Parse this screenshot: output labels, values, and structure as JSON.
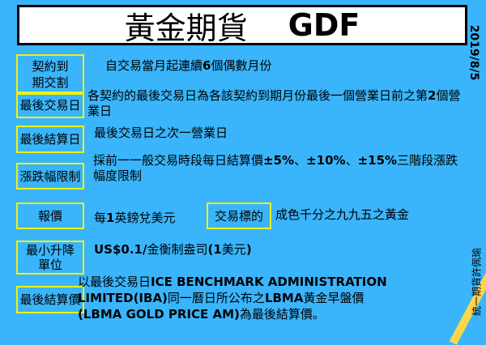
{
  "title": {
    "zh": "黃金期貨",
    "code": "GDF"
  },
  "date": "2019/8/5",
  "author": "統一期貨許佩瑜",
  "colors": {
    "background": "#3ab5fb",
    "label_border": "#f2f20a",
    "stripe": "#ffd54a"
  },
  "rows": [
    {
      "label": "契約到\n期交割",
      "segments": [
        {
          "t": "自交易當月起連續"
        },
        {
          "t": "6",
          "b": true
        },
        {
          "t": "個偶數月份"
        }
      ]
    },
    {
      "label": "最後交易日",
      "segments": [
        {
          "t": "各契約的最後交易日為各該契約到期月份最後一個營業日前之第"
        },
        {
          "t": "2",
          "b": true
        },
        {
          "t": "個營業日"
        }
      ]
    },
    {
      "label": "最後結算日",
      "segments": [
        {
          "t": "最後交易日之次一營業日"
        }
      ]
    },
    {
      "label": "漲跌幅限制",
      "segments": [
        {
          "t": "採前一一般交易時段每日結算價"
        },
        {
          "t": "±5%",
          "b": true
        },
        {
          "t": "、"
        },
        {
          "t": "±10%",
          "b": true
        },
        {
          "t": "、"
        },
        {
          "t": "±15%",
          "b": true
        },
        {
          "t": "三階段漲跌幅度限制"
        }
      ]
    },
    {
      "label": "報價",
      "segments": [
        {
          "t": "每"
        },
        {
          "t": "1",
          "b": true
        },
        {
          "t": "英鎊兌美元"
        }
      ]
    },
    {
      "label": "最小升降\n單位",
      "segments": [
        {
          "t": "US$0.1/",
          "b": true
        },
        {
          "t": "金衡制盎司"
        },
        {
          "t": "(1",
          "b": true
        },
        {
          "t": "美元"
        },
        {
          "t": ")",
          "b": true
        }
      ]
    },
    {
      "label": "最後結算價",
      "segments": [
        {
          "t": "以最後交易日"
        },
        {
          "t": "ICE BENCHMARK ADMINISTRATION LIMITED(IBA)",
          "b": true
        },
        {
          "t": "同一曆日所公布之"
        },
        {
          "t": "LBMA",
          "b": true
        },
        {
          "t": "黃金早盤價"
        },
        {
          "t": "(LBMA GOLD PRICE AM)",
          "b": true
        },
        {
          "t": "為最後結算價。"
        }
      ]
    }
  ],
  "extra": {
    "label": "交易標的",
    "text": "成色千分之九九五之黃金"
  }
}
